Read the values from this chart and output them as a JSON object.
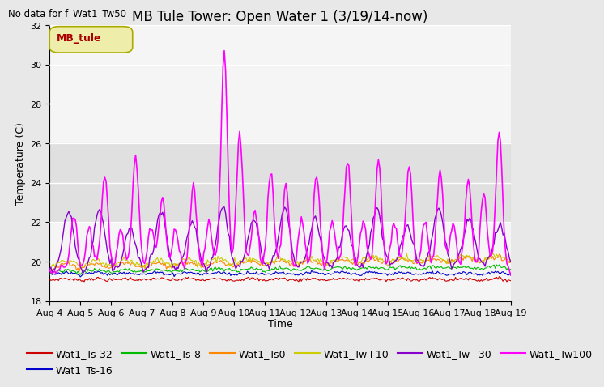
{
  "title": "MB Tule Tower: Open Water 1 (3/19/14-now)",
  "suptitle": "No data for f_Wat1_Tw50",
  "ylabel": "Temperature (C)",
  "xlabel": "Time",
  "ylim": [
    18,
    32
  ],
  "yticks": [
    18,
    20,
    22,
    24,
    26,
    28,
    30,
    32
  ],
  "xlim": [
    0,
    15
  ],
  "xtick_labels": [
    "Aug 4",
    "Aug 5",
    "Aug 6",
    "Aug 7",
    "Aug 8",
    "Aug 9",
    "Aug 10",
    "Aug 11",
    "Aug 12",
    "Aug 13",
    "Aug 14",
    "Aug 15",
    "Aug 16",
    "Aug 17",
    "Aug 18",
    "Aug 19"
  ],
  "legend_box_label": "MB_tule",
  "legend_box_text_color": "#aa0000",
  "legend_box_face_color": "#eeeeaa",
  "legend_box_edge_color": "#aaaa00",
  "background_color": "#e8e8e8",
  "plot_bg_color": "#f5f5f5",
  "series_colors": {
    "Wat1_Ts-32": "#cc0000",
    "Wat1_Ts-16": "#0000cc",
    "Wat1_Ts-8": "#00bb00",
    "Wat1_Ts0": "#ff8800",
    "Wat1_Tw+10": "#cccc00",
    "Wat1_Tw+30": "#8800cc",
    "Wat1_Tw100": "#ff00ff"
  },
  "grid_color": "#ffffff",
  "grid_linewidth": 1.0,
  "title_fontsize": 12,
  "axis_label_fontsize": 9,
  "tick_fontsize": 8,
  "legend_fontsize": 9,
  "shaded_band": [
    22,
    26
  ],
  "shaded_color": "#cccccc"
}
